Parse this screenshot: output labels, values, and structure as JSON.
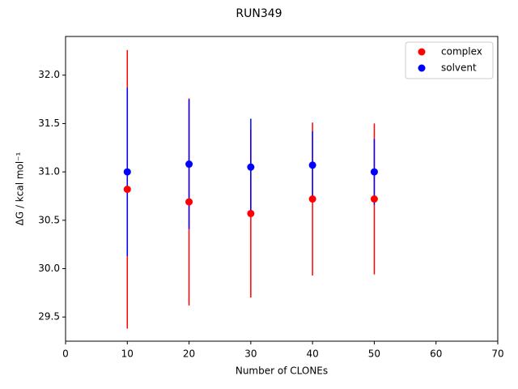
{
  "chart_data": {
    "type": "scatter",
    "title": "RUN349",
    "xlabel": "Number of CLONEs",
    "ylabel": "ΔG / kcal mol⁻¹",
    "x": [
      10,
      20,
      30,
      40,
      50
    ],
    "series": [
      {
        "name": "complex",
        "color": "#ff0000",
        "values": [
          30.82,
          30.69,
          30.57,
          30.72,
          30.72
        ],
        "errors": [
          1.44,
          1.07,
          0.87,
          0.79,
          0.78
        ]
      },
      {
        "name": "solvent",
        "color": "#0000ff",
        "values": [
          31.0,
          31.08,
          31.05,
          31.07,
          31.0
        ],
        "errors": [
          0.87,
          0.67,
          0.5,
          0.35,
          0.34
        ]
      }
    ],
    "xlim": [
      0,
      70
    ],
    "xticks": [
      0,
      10,
      20,
      30,
      40,
      50,
      60,
      70
    ],
    "ylim": [
      29.25,
      32.4
    ],
    "yticks": [
      29.5,
      {
        "value": 30,
        "label": "30.0"
      },
      30.5,
      {
        "value": 31,
        "label": "31.0"
      },
      31.5,
      {
        "value": 32,
        "label": "32.0"
      }
    ],
    "legend": "upper right"
  }
}
